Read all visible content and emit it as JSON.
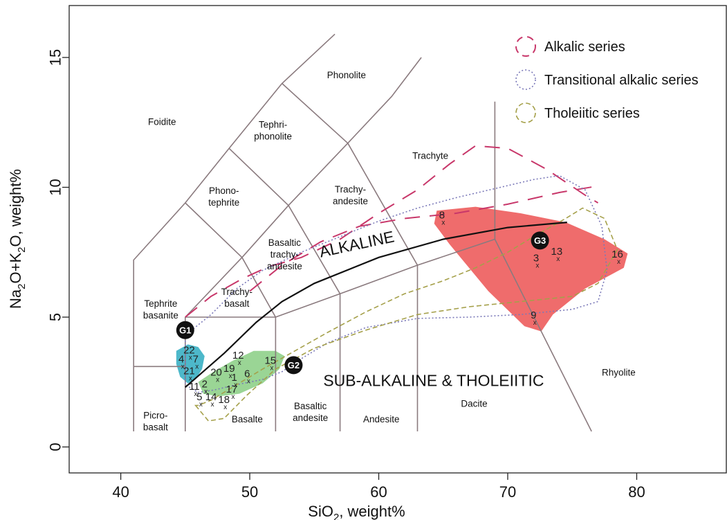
{
  "chart_data": {
    "type": "scatter",
    "title": "",
    "xlabel": "SiO",
    "xlabel_sub": "2",
    "xlabel_rest": ", weight%",
    "ylabel_parts": [
      "Na",
      "2",
      "O+K",
      "2",
      "O, weight%"
    ],
    "xlim": [
      36,
      87
    ],
    "ylim": [
      -1,
      17
    ],
    "x_ticks": [
      40,
      50,
      60,
      70,
      80
    ],
    "y_ticks": [
      0,
      5,
      10,
      15
    ],
    "grid": false,
    "legend_position": "top-right",
    "tas_fields": [
      {
        "name": "foidite",
        "lines": [
          "Foidite"
        ],
        "x": 43.2,
        "y": 12.4
      },
      {
        "name": "phonolite",
        "lines": [
          "Phonolite"
        ],
        "x": 57.5,
        "y": 14.2
      },
      {
        "name": "tephriphonolite",
        "lines": [
          "Tephri-",
          "phonolite"
        ],
        "x": 51.8,
        "y": 12.3
      },
      {
        "name": "phonotephrite",
        "lines": [
          "Phono-",
          "tephrite"
        ],
        "x": 48.0,
        "y": 9.75
      },
      {
        "name": "trachyte",
        "lines": [
          "Trachyte"
        ],
        "x": 64.0,
        "y": 11.1
      },
      {
        "name": "trachyandesite",
        "lines": [
          "Trachy-",
          "andesite"
        ],
        "x": 57.8,
        "y": 9.8
      },
      {
        "name": "basaltic-trachyandesite",
        "lines": [
          "Basaltic",
          "trachy-",
          "andesite"
        ],
        "x": 52.7,
        "y": 7.75
      },
      {
        "name": "trachybasalt",
        "lines": [
          "Trachy-",
          "basalt"
        ],
        "x": 49.0,
        "y": 5.85
      },
      {
        "name": "tephrite-basanite",
        "lines": [
          "Tephrite",
          "basanite"
        ],
        "x": 43.1,
        "y": 5.4
      },
      {
        "name": "picrobasalt",
        "lines": [
          "Picro-",
          "basalt"
        ],
        "x": 42.7,
        "y": 1.1
      },
      {
        "name": "basalt",
        "lines": [
          "Basalte"
        ],
        "x": 49.8,
        "y": 0.95
      },
      {
        "name": "basaltic-andesite",
        "lines": [
          "Basaltic",
          "andesite"
        ],
        "x": 54.7,
        "y": 1.45
      },
      {
        "name": "andesite",
        "lines": [
          "Andesite"
        ],
        "x": 60.2,
        "y": 0.95
      },
      {
        "name": "dacite",
        "lines": [
          "Dacite"
        ],
        "x": 67.4,
        "y": 1.55
      },
      {
        "name": "rhyolite",
        "lines": [
          "Rhyolite"
        ],
        "x": 78.6,
        "y": 2.75
      }
    ],
    "divider_label_alkaline": "ALKALINE",
    "divider_label_subalkaline": "SUB-ALKALINE & THOLEIITIC",
    "divider_curve": [
      [
        45,
        2.3
      ],
      [
        48,
        3.6
      ],
      [
        50.5,
        4.8
      ],
      [
        52.5,
        5.6
      ],
      [
        55,
        6.3
      ],
      [
        60,
        7.3
      ],
      [
        65,
        8.0
      ],
      [
        70,
        8.45
      ],
      [
        74.6,
        8.65
      ]
    ],
    "legend": [
      {
        "name": "alkalic",
        "label": "Alkalic series",
        "color": "#c8376a"
      },
      {
        "name": "transitional",
        "label": "Transitional alkalic series",
        "color": "#7a78b8"
      },
      {
        "name": "tholeiitic",
        "label": "Tholeiitic series",
        "color": "#a5a04a"
      }
    ],
    "groups": [
      {
        "name": "G1",
        "label": "G1",
        "x": 45.0,
        "y": 4.5,
        "color": "#3ab0c4"
      },
      {
        "name": "G2",
        "label": "G2",
        "x": 53.4,
        "y": 3.15,
        "color": "#7ec87e"
      },
      {
        "name": "G3",
        "label": "G3",
        "x": 72.5,
        "y": 7.95,
        "color": "#ee6464"
      }
    ],
    "samples": [
      {
        "label": "22",
        "x": 45.3,
        "y": 3.6
      },
      {
        "label": "4",
        "x": 44.7,
        "y": 3.25
      },
      {
        "label": "7",
        "x": 45.8,
        "y": 3.25
      },
      {
        "label": "21",
        "x": 45.3,
        "y": 2.8
      },
      {
        "label": "11",
        "x": 45.7,
        "y": 2.2
      },
      {
        "label": "2",
        "x": 46.5,
        "y": 2.3
      },
      {
        "label": "20",
        "x": 47.4,
        "y": 2.75
      },
      {
        "label": "19",
        "x": 48.4,
        "y": 2.9
      },
      {
        "label": "12",
        "x": 49.1,
        "y": 3.4
      },
      {
        "label": "1",
        "x": 48.8,
        "y": 2.55
      },
      {
        "label": "6",
        "x": 49.8,
        "y": 2.7
      },
      {
        "label": "15",
        "x": 51.6,
        "y": 3.2
      },
      {
        "label": "17",
        "x": 48.6,
        "y": 2.1
      },
      {
        "label": "5",
        "x": 46.1,
        "y": 1.8
      },
      {
        "label": "14",
        "x": 47.0,
        "y": 1.8
      },
      {
        "label": "18",
        "x": 48.0,
        "y": 1.7
      },
      {
        "label": "8",
        "x": 64.9,
        "y": 8.8
      },
      {
        "label": "3",
        "x": 72.2,
        "y": 7.15
      },
      {
        "label": "13",
        "x": 73.8,
        "y": 7.4
      },
      {
        "label": "16",
        "x": 78.5,
        "y": 7.3
      },
      {
        "label": "9",
        "x": 72.0,
        "y": 4.95
      }
    ]
  }
}
